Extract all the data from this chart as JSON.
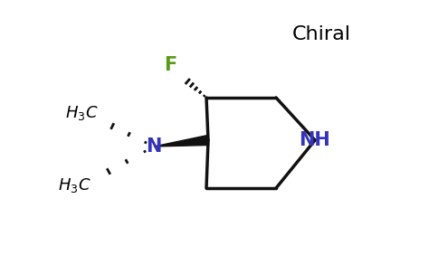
{
  "bg_color": "#ffffff",
  "chiral_text": "Chiral",
  "chiral_color": "#000000",
  "chiral_fontsize": 16,
  "F_label": "F",
  "F_color": "#5a9a1a",
  "F_fontsize": 15,
  "N_label": "N",
  "N_color": "#3333bb",
  "N_fontsize": 15,
  "NH_label": "NH",
  "NH_color": "#3333bb",
  "NH_fontsize": 15,
  "H3C_fontsize": 13,
  "ring_color": "#111111",
  "ring_lw": 2.5
}
